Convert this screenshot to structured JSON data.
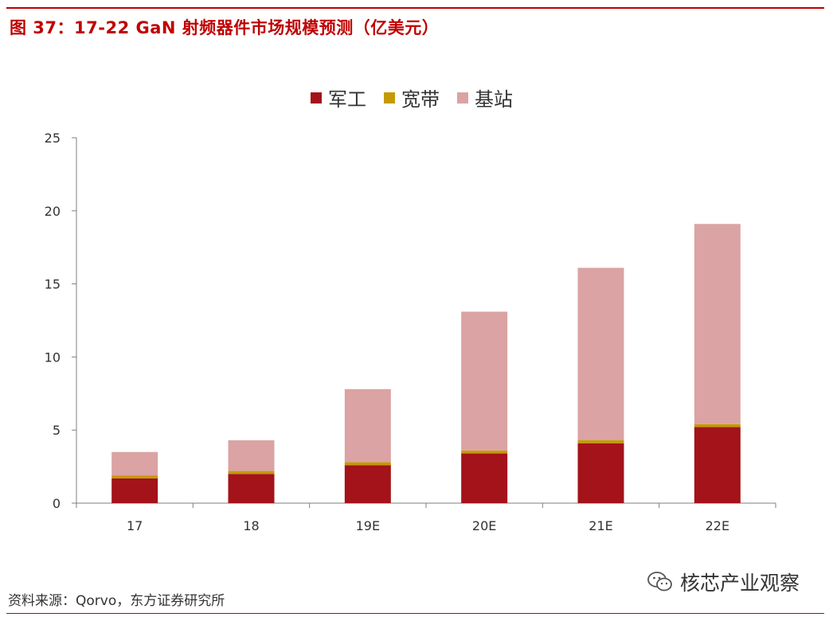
{
  "figure": {
    "title": "图 37：17-22 GaN 射频器件市场规模预测（亿美元）",
    "source": "资料来源：Qorvo，东方证券研究所",
    "watermark": "核芯产业观察",
    "watermark_icon": "wechat-icon"
  },
  "colors": {
    "accent": "#c00000",
    "军工": "#a31319",
    "宽带": "#c49a00",
    "基站": "#dba3a3"
  },
  "chart_data": {
    "type": "bar",
    "stacked": true,
    "categories": [
      "17",
      "18",
      "19E",
      "20E",
      "21E",
      "22E"
    ],
    "series": [
      {
        "name": "军工",
        "values": [
          1.7,
          2.0,
          2.6,
          3.4,
          4.1,
          5.2
        ]
      },
      {
        "name": "宽带",
        "values": [
          0.2,
          0.2,
          0.2,
          0.2,
          0.2,
          0.2
        ]
      },
      {
        "name": "基站",
        "values": [
          1.6,
          2.1,
          5.0,
          9.5,
          11.8,
          13.7
        ]
      }
    ],
    "yticks": [
      0,
      5,
      10,
      15,
      20,
      25
    ],
    "ylim": [
      0,
      25
    ],
    "legend_position": "top-center",
    "grid": false
  }
}
